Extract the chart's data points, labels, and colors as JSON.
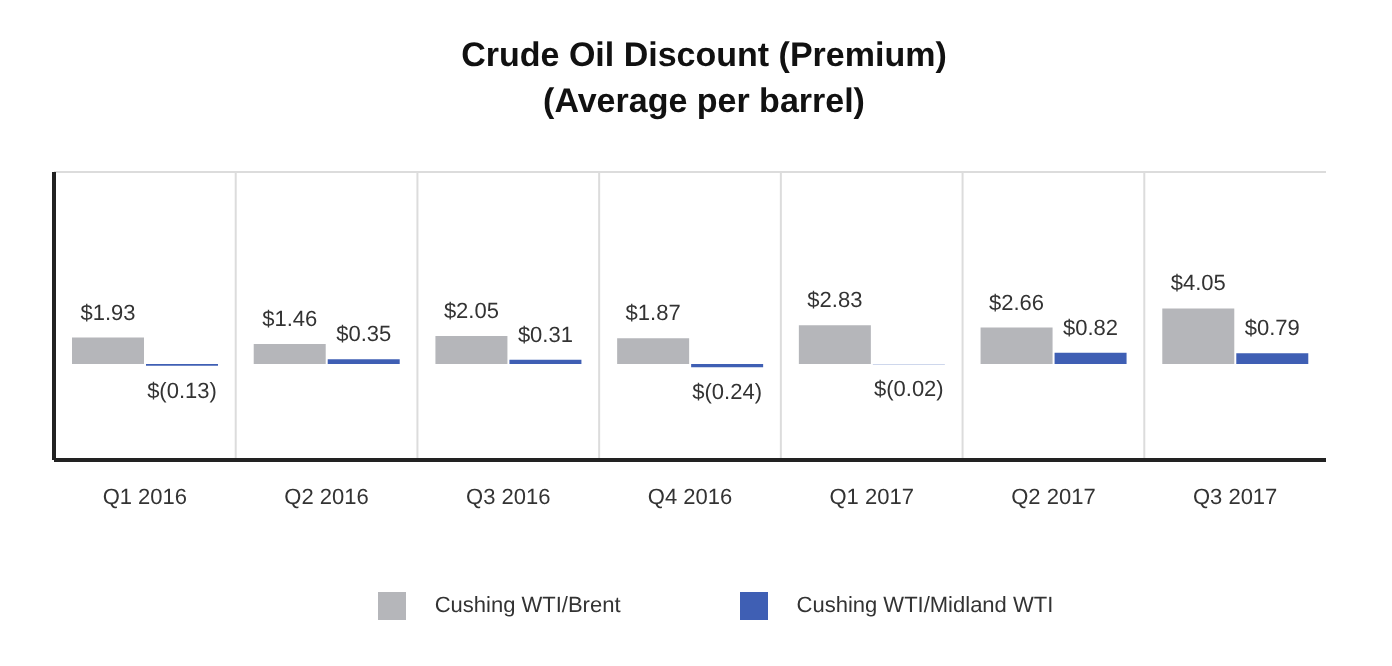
{
  "chart_data": {
    "type": "bar",
    "title": "Crude Oil Discount (Premium)",
    "subtitle": "(Average per barrel)",
    "categories": [
      "Q1 2016",
      "Q2 2016",
      "Q3 2016",
      "Q4 2016",
      "Q1 2017",
      "Q2 2017",
      "Q3 2017"
    ],
    "series": [
      {
        "name": "Cushing WTI/Brent",
        "color": "#b5b6ba",
        "values": [
          1.93,
          1.46,
          2.05,
          1.87,
          2.83,
          2.66,
          4.05
        ],
        "value_labels": [
          "$1.93",
          "$1.46",
          "$2.05",
          "$1.87",
          "$2.83",
          "$2.66",
          "$4.05"
        ]
      },
      {
        "name": "Cushing WTI/Midland WTI",
        "color": "#3f5fb4",
        "values": [
          -0.13,
          0.35,
          0.31,
          -0.24,
          -0.02,
          0.82,
          0.79
        ],
        "value_labels": [
          "$(0.13)",
          "$0.35",
          "$0.31",
          "$(0.24)",
          "$(0.02)",
          "$0.82",
          "$0.79"
        ]
      }
    ],
    "ylim": [
      -7,
      14
    ],
    "tick_labels": "x",
    "grid": true,
    "legend": "bottom"
  }
}
